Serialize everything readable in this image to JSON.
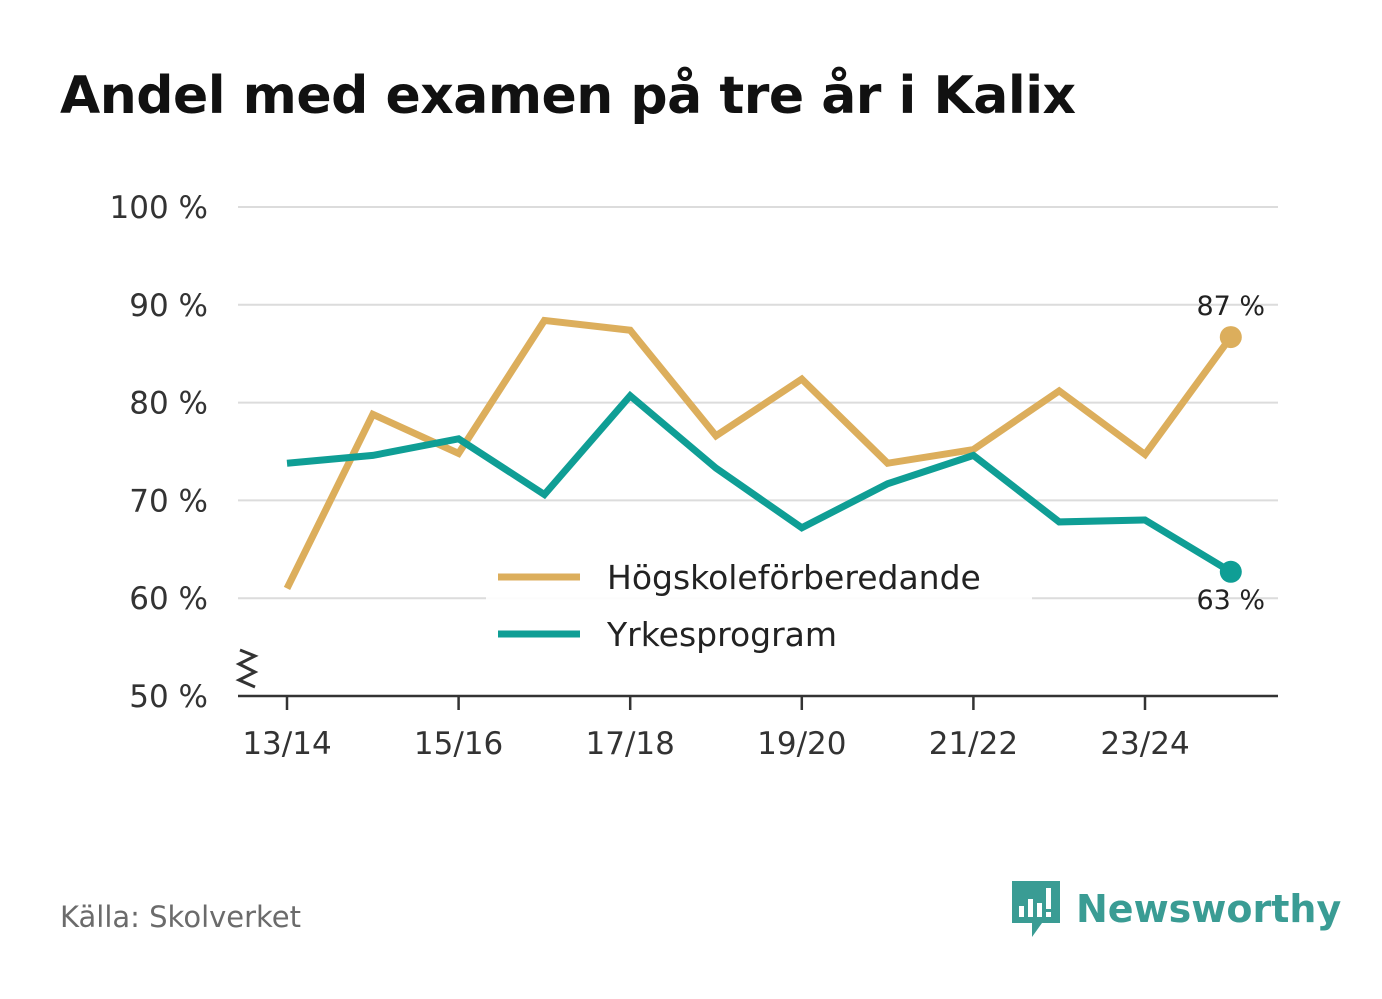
{
  "title": "Andel med examen på tre år i Kalix",
  "source": "Källa: Skolverket",
  "brand": {
    "name": "Newsworthy",
    "icon": "newsworthy-logo-icon",
    "color": "#3a9c94"
  },
  "chart_data": {
    "type": "line",
    "title": "Andel med examen på tre år i Kalix",
    "xlabel": "",
    "ylabel": "",
    "x": [
      "13/14",
      "14/15",
      "15/16",
      "16/17",
      "17/18",
      "18/19",
      "19/20",
      "20/21",
      "21/22",
      "22/23",
      "23/24",
      "24/25"
    ],
    "x_tick_labels": [
      "13/14",
      "15/16",
      "17/18",
      "19/20",
      "21/22",
      "23/24"
    ],
    "y_ticks": [
      50,
      60,
      70,
      80,
      90,
      100
    ],
    "y_tick_labels": [
      "50 %",
      "60 %",
      "70 %",
      "80 %",
      "90 %",
      "100 %"
    ],
    "ylim": [
      50,
      100
    ],
    "y_axis_break": true,
    "grid": true,
    "legend_position": "bottom-center",
    "series": [
      {
        "name": "Högskoleförberedande",
        "color": "#dcae5c",
        "values": [
          61,
          78.8,
          74.8,
          88.4,
          87.4,
          76.6,
          82.4,
          73.8,
          75.2,
          81.2,
          74.7,
          86.7
        ],
        "end_label": "87 %"
      },
      {
        "name": "Yrkesprogram",
        "color": "#0f9e95",
        "values": [
          73.8,
          74.6,
          76.3,
          70.6,
          80.7,
          73.3,
          67.2,
          71.7,
          74.6,
          67.8,
          68,
          62.7
        ],
        "end_label": "63 %"
      }
    ]
  }
}
